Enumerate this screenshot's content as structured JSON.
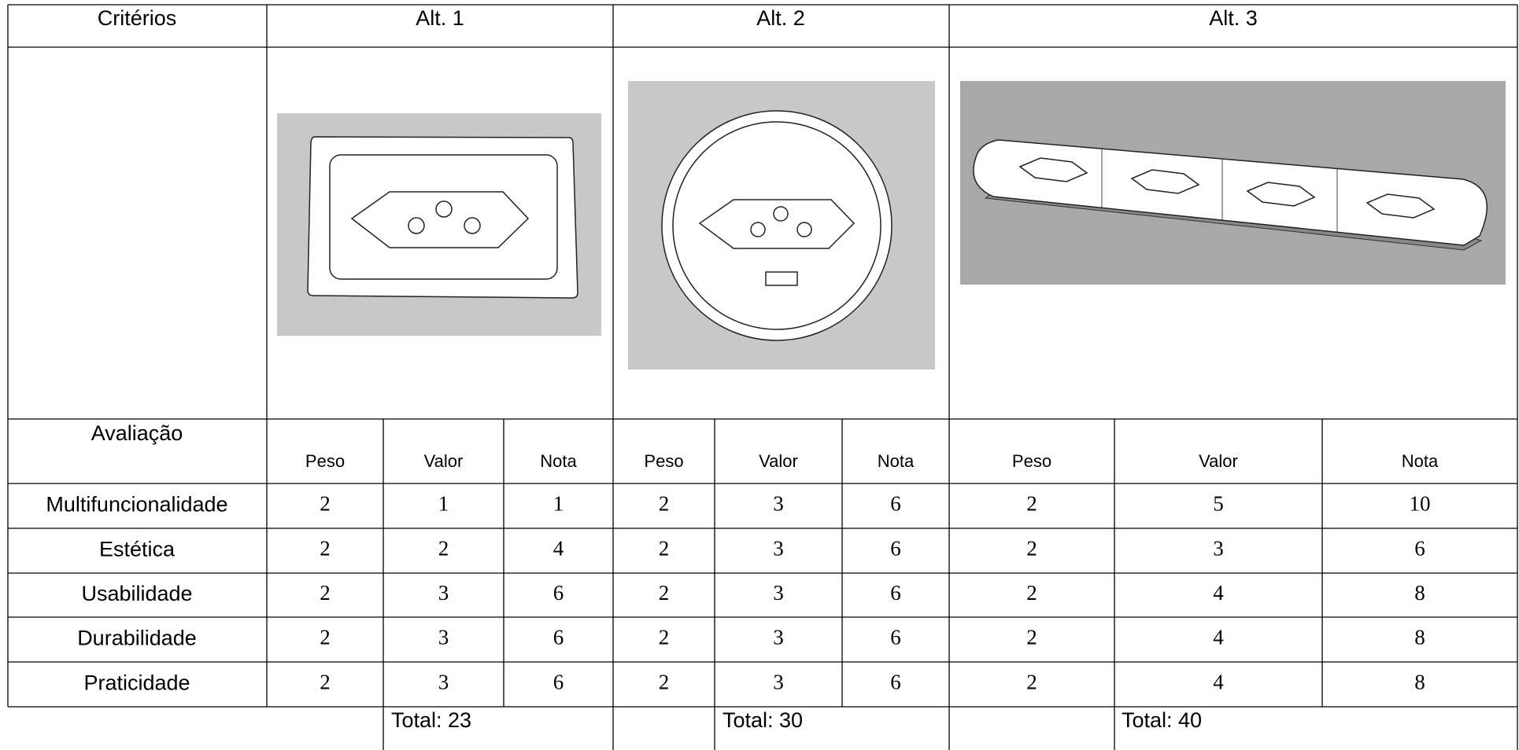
{
  "header": {
    "criteria": "Critérios",
    "alternatives": [
      "Alt. 1",
      "Alt. 2",
      "Alt. 3"
    ]
  },
  "evaluation": {
    "label": "Avaliação",
    "subheaders": [
      [
        "Peso",
        "Valor",
        "Nota"
      ],
      [
        "Peso",
        "Valor",
        "Nota"
      ],
      [
        "Peso",
        "Valor",
        "Nota"
      ]
    ]
  },
  "rows": [
    {
      "criterion": "Multifuncionalidade",
      "cells": [
        2,
        1,
        1,
        2,
        3,
        6,
        2,
        5,
        10
      ]
    },
    {
      "criterion": "Estética",
      "cells": [
        2,
        2,
        4,
        2,
        3,
        6,
        2,
        3,
        6
      ]
    },
    {
      "criterion": "Usabilidade",
      "cells": [
        2,
        3,
        6,
        2,
        3,
        6,
        2,
        4,
        8
      ]
    },
    {
      "criterion": "Durabilidade",
      "cells": [
        2,
        3,
        6,
        2,
        3,
        6,
        2,
        4,
        8
      ]
    },
    {
      "criterion": "Praticidade",
      "cells": [
        2,
        3,
        6,
        2,
        3,
        6,
        2,
        4,
        8
      ]
    }
  ],
  "totals": [
    "Total: 23",
    "Total: 30",
    "Total: 40"
  ]
}
